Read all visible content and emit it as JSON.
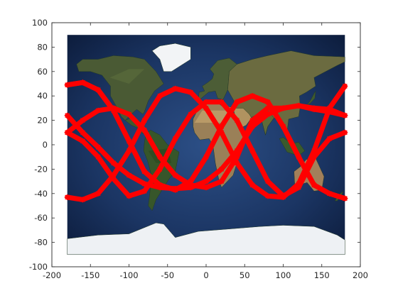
{
  "chart_data": {
    "type": "line",
    "title": "",
    "xlabel": "",
    "ylabel": "",
    "xlim": [
      -200,
      200
    ],
    "ylim": [
      -100,
      100
    ],
    "xticks": [
      -200,
      -150,
      -100,
      -50,
      0,
      50,
      100,
      150,
      200
    ],
    "yticks": [
      -100,
      -80,
      -60,
      -40,
      -20,
      0,
      20,
      40,
      60,
      80,
      100
    ],
    "grid": false,
    "legend": "none",
    "background_image": "world-satellite-map",
    "background_extent": {
      "x": [
        -180,
        180
      ],
      "y": [
        -90,
        90
      ]
    },
    "marker": "star",
    "series": [
      {
        "color": "#ff0000",
        "x": [
          -180,
          -160,
          -140,
          -120,
          -100,
          -80,
          -60,
          -40,
          -20,
          0,
          20,
          40,
          60,
          80,
          100,
          120,
          140,
          160,
          180
        ],
        "y": [
          49,
          51,
          45,
          28,
          3,
          -22,
          -33,
          -37,
          -30,
          -10,
          15,
          35,
          40,
          35,
          15,
          -10,
          -33,
          -40,
          -44
        ]
      },
      {
        "color": "#ff0000",
        "x": [
          -180,
          -160,
          -140,
          -120,
          -100,
          -80,
          -60,
          -40,
          -20,
          0,
          20,
          40,
          60,
          80,
          100,
          120,
          140,
          160,
          180
        ],
        "y": [
          24,
          10,
          -2,
          -15,
          -25,
          -32,
          -35,
          -36,
          -35,
          -30,
          -20,
          -5,
          15,
          25,
          30,
          32,
          29,
          27,
          24
        ]
      },
      {
        "color": "#ff0000",
        "x": [
          -180,
          -160,
          -140,
          -120,
          -100,
          -80,
          -60,
          -40,
          -20,
          0,
          20,
          40,
          60,
          80,
          100,
          120,
          140,
          160,
          180
        ],
        "y": [
          10,
          20,
          28,
          30,
          25,
          12,
          -10,
          -25,
          -33,
          -35,
          -30,
          -10,
          20,
          30,
          30,
          32,
          30,
          29,
          24
        ]
      },
      {
        "color": "#ff0000",
        "x": [
          -180,
          -160,
          -140,
          -120,
          -100,
          -80,
          -60,
          -40,
          -20,
          0,
          20,
          40,
          60,
          80,
          100,
          120,
          140,
          160,
          180
        ],
        "y": [
          -43,
          -45,
          -40,
          -25,
          -5,
          20,
          40,
          46,
          43,
          30,
          10,
          -15,
          -33,
          -42,
          -43,
          -32,
          -5,
          30,
          48
        ]
      },
      {
        "color": "#ff0000",
        "x": [
          -180,
          -160,
          -140,
          -120,
          -100,
          -80,
          -60,
          -40,
          -20,
          0,
          20,
          40,
          60,
          80,
          100,
          120,
          140,
          160,
          180
        ],
        "y": [
          49,
          51,
          45,
          28,
          3,
          -22,
          -33,
          -37,
          -30,
          -10,
          15,
          35,
          40,
          35,
          15,
          -10,
          -33,
          -40,
          -44
        ]
      },
      {
        "color": "#ff0000",
        "x": [
          -180,
          -160,
          -140,
          -120,
          -100,
          -80,
          -60,
          -40,
          -20,
          0,
          20,
          40,
          60,
          80,
          100,
          120,
          140,
          160,
          180
        ],
        "y": [
          10,
          3,
          -10,
          -28,
          -42,
          -38,
          -20,
          5,
          25,
          35,
          35,
          20,
          -5,
          -30,
          -42,
          -35,
          -10,
          5,
          10
        ]
      }
    ]
  }
}
